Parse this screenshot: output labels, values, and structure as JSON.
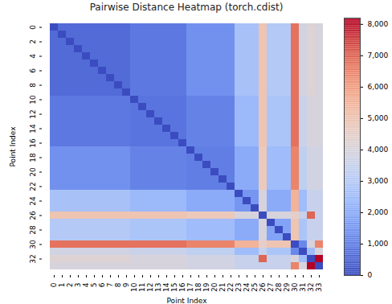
{
  "chart_data": {
    "type": "heatmap",
    "title": "Pairwise Distance Heatmap (torch.cdist)",
    "x_label": "Point Index",
    "y_label": "Point Index",
    "x": [
      0,
      1,
      2,
      3,
      4,
      5,
      6,
      7,
      8,
      9,
      10,
      11,
      12,
      13,
      14,
      15,
      16,
      17,
      18,
      19,
      20,
      21,
      22,
      23,
      24,
      25,
      26,
      27,
      28,
      29,
      30,
      31,
      32,
      33
    ],
    "y": [
      0,
      1,
      2,
      3,
      4,
      5,
      6,
      7,
      8,
      9,
      10,
      11,
      12,
      13,
      14,
      15,
      16,
      17,
      18,
      19,
      20,
      21,
      22,
      23,
      24,
      25,
      26,
      27,
      28,
      29,
      30,
      31,
      32,
      33
    ],
    "xticks": [
      0,
      1,
      2,
      3,
      4,
      5,
      6,
      7,
      8,
      9,
      10,
      11,
      12,
      13,
      14,
      15,
      16,
      17,
      18,
      19,
      20,
      21,
      22,
      23,
      24,
      25,
      26,
      27,
      28,
      29,
      30,
      31,
      32,
      33
    ],
    "yticks": [
      0,
      2,
      4,
      6,
      8,
      10,
      12,
      14,
      16,
      18,
      20,
      22,
      24,
      26,
      28,
      30,
      32
    ],
    "colorbar": {
      "lim": [
        0,
        8200
      ],
      "ticks": [
        0,
        1000,
        2000,
        3000,
        4000,
        5000,
        6000,
        7000,
        8000
      ]
    },
    "matrix": [
      [
        0,
        600,
        600,
        600,
        600,
        600,
        600,
        600,
        600,
        600,
        900,
        900,
        900,
        900,
        900,
        900,
        900,
        1400,
        1400,
        1400,
        1400,
        1400,
        1400,
        2700,
        2700,
        2700,
        5000,
        3000,
        3000,
        3000,
        6800,
        3800,
        4200,
        4000
      ],
      [
        600,
        0,
        600,
        600,
        600,
        600,
        600,
        600,
        600,
        600,
        900,
        900,
        900,
        900,
        900,
        900,
        900,
        1400,
        1400,
        1400,
        1400,
        1400,
        1400,
        2700,
        2700,
        2700,
        5000,
        3000,
        3000,
        3000,
        6800,
        3800,
        4200,
        4000
      ],
      [
        600,
        600,
        0,
        600,
        600,
        600,
        600,
        600,
        600,
        600,
        900,
        900,
        900,
        900,
        900,
        900,
        900,
        1400,
        1400,
        1400,
        1400,
        1400,
        1400,
        2700,
        2700,
        2700,
        5000,
        3000,
        3000,
        3000,
        6800,
        3800,
        4200,
        4000
      ],
      [
        600,
        600,
        600,
        0,
        600,
        600,
        600,
        600,
        600,
        600,
        900,
        900,
        900,
        900,
        900,
        900,
        900,
        1400,
        1400,
        1400,
        1400,
        1400,
        1400,
        2700,
        2700,
        2700,
        5000,
        3000,
        3000,
        3000,
        6800,
        3800,
        4200,
        4000
      ],
      [
        600,
        600,
        600,
        600,
        0,
        600,
        600,
        600,
        600,
        600,
        900,
        900,
        900,
        900,
        900,
        900,
        900,
        1400,
        1400,
        1400,
        1400,
        1400,
        1400,
        2700,
        2700,
        2700,
        5000,
        3000,
        3000,
        3000,
        6800,
        3800,
        4200,
        4000
      ],
      [
        600,
        600,
        600,
        600,
        600,
        0,
        600,
        600,
        600,
        600,
        900,
        900,
        900,
        900,
        900,
        900,
        900,
        1400,
        1400,
        1400,
        1400,
        1400,
        1400,
        2700,
        2700,
        2700,
        5000,
        3000,
        3000,
        3000,
        6800,
        3800,
        4200,
        4000
      ],
      [
        600,
        600,
        600,
        600,
        600,
        600,
        0,
        600,
        600,
        600,
        900,
        900,
        900,
        900,
        900,
        900,
        900,
        1400,
        1400,
        1400,
        1400,
        1400,
        1400,
        2700,
        2700,
        2700,
        5000,
        3000,
        3000,
        3000,
        6800,
        3800,
        4200,
        4000
      ],
      [
        600,
        600,
        600,
        600,
        600,
        600,
        600,
        0,
        600,
        600,
        900,
        900,
        900,
        900,
        900,
        900,
        900,
        1400,
        1400,
        1400,
        1400,
        1400,
        1400,
        2700,
        2700,
        2700,
        5000,
        3000,
        3000,
        3000,
        6800,
        3800,
        4200,
        4000
      ],
      [
        600,
        600,
        600,
        600,
        600,
        600,
        600,
        600,
        0,
        600,
        900,
        900,
        900,
        900,
        900,
        900,
        900,
        1400,
        1400,
        1400,
        1400,
        1400,
        1400,
        2700,
        2700,
        2700,
        5000,
        3000,
        3000,
        3000,
        6800,
        3800,
        4200,
        4000
      ],
      [
        600,
        600,
        600,
        600,
        600,
        600,
        600,
        600,
        600,
        0,
        900,
        900,
        900,
        900,
        900,
        900,
        900,
        1400,
        1400,
        1400,
        1400,
        1400,
        1400,
        2700,
        2700,
        2700,
        5000,
        3000,
        3000,
        3000,
        6800,
        3800,
        4200,
        4000
      ],
      [
        900,
        900,
        900,
        900,
        900,
        900,
        900,
        900,
        900,
        900,
        0,
        800,
        800,
        800,
        800,
        800,
        800,
        1100,
        1100,
        1100,
        1100,
        1100,
        1100,
        2400,
        2400,
        2400,
        5000,
        2800,
        2800,
        2800,
        6800,
        3600,
        4000,
        4000
      ],
      [
        900,
        900,
        900,
        900,
        900,
        900,
        900,
        900,
        900,
        900,
        800,
        0,
        800,
        800,
        800,
        800,
        800,
        1100,
        1100,
        1100,
        1100,
        1100,
        1100,
        2400,
        2400,
        2400,
        5000,
        2800,
        2800,
        2800,
        6800,
        3600,
        4000,
        4000
      ],
      [
        900,
        900,
        900,
        900,
        900,
        900,
        900,
        900,
        900,
        900,
        800,
        800,
        0,
        800,
        800,
        800,
        800,
        1100,
        1100,
        1100,
        1100,
        1100,
        1100,
        2400,
        2400,
        2400,
        5000,
        2800,
        2800,
        2800,
        6800,
        3600,
        4000,
        4000
      ],
      [
        900,
        900,
        900,
        900,
        900,
        900,
        900,
        900,
        900,
        900,
        800,
        800,
        800,
        0,
        800,
        800,
        800,
        1100,
        1100,
        1100,
        1100,
        1100,
        1100,
        2400,
        2400,
        2400,
        5000,
        2800,
        2800,
        2800,
        6800,
        3600,
        4000,
        4000
      ],
      [
        900,
        900,
        900,
        900,
        900,
        900,
        900,
        900,
        900,
        900,
        800,
        800,
        800,
        800,
        0,
        800,
        800,
        1100,
        1100,
        1100,
        1100,
        1100,
        1100,
        2400,
        2400,
        2400,
        5000,
        2800,
        2800,
        2800,
        6800,
        3600,
        4000,
        4000
      ],
      [
        900,
        900,
        900,
        900,
        900,
        900,
        900,
        900,
        900,
        900,
        800,
        800,
        800,
        800,
        800,
        0,
        800,
        1100,
        1100,
        1100,
        1100,
        1100,
        1100,
        2400,
        2400,
        2400,
        5000,
        2800,
        2800,
        2800,
        6800,
        3600,
        4000,
        4000
      ],
      [
        900,
        900,
        900,
        900,
        900,
        900,
        900,
        900,
        900,
        900,
        800,
        800,
        800,
        800,
        800,
        800,
        0,
        1100,
        1100,
        1100,
        1100,
        1100,
        1100,
        2400,
        2400,
        2400,
        5000,
        2800,
        2800,
        2800,
        6800,
        3600,
        4000,
        4000
      ],
      [
        1400,
        1400,
        1400,
        1400,
        1400,
        1400,
        1400,
        1400,
        1400,
        1400,
        1100,
        1100,
        1100,
        1100,
        1100,
        1100,
        1100,
        0,
        1000,
        1000,
        1000,
        1000,
        1000,
        2000,
        2000,
        2000,
        4800,
        2500,
        2500,
        2500,
        6500,
        3300,
        3800,
        3800
      ],
      [
        1400,
        1400,
        1400,
        1400,
        1400,
        1400,
        1400,
        1400,
        1400,
        1400,
        1100,
        1100,
        1100,
        1100,
        1100,
        1100,
        1100,
        1000,
        0,
        1000,
        1000,
        1000,
        1000,
        2000,
        2000,
        2000,
        4800,
        2500,
        2500,
        2500,
        6500,
        3300,
        3800,
        3800
      ],
      [
        1400,
        1400,
        1400,
        1400,
        1400,
        1400,
        1400,
        1400,
        1400,
        1400,
        1100,
        1100,
        1100,
        1100,
        1100,
        1100,
        1100,
        1000,
        1000,
        0,
        1000,
        1000,
        1000,
        2000,
        2000,
        2000,
        4800,
        2500,
        2500,
        2500,
        6500,
        3300,
        3800,
        3800
      ],
      [
        1400,
        1400,
        1400,
        1400,
        1400,
        1400,
        1400,
        1400,
        1400,
        1400,
        1100,
        1100,
        1100,
        1100,
        1100,
        1100,
        1100,
        1000,
        1000,
        1000,
        0,
        1000,
        1000,
        2000,
        2000,
        2000,
        4800,
        2500,
        2500,
        2500,
        6500,
        3300,
        3800,
        3800
      ],
      [
        1400,
        1400,
        1400,
        1400,
        1400,
        1400,
        1400,
        1400,
        1400,
        1400,
        1100,
        1100,
        1100,
        1100,
        1100,
        1100,
        1100,
        1000,
        1000,
        1000,
        1000,
        0,
        1000,
        2000,
        2000,
        2000,
        4800,
        2500,
        2500,
        2500,
        6500,
        3300,
        3800,
        3800
      ],
      [
        1400,
        1400,
        1400,
        1400,
        1400,
        1400,
        1400,
        1400,
        1400,
        1400,
        1100,
        1100,
        1100,
        1100,
        1100,
        1100,
        1100,
        1000,
        1000,
        1000,
        1000,
        1000,
        0,
        2000,
        2000,
        2000,
        4800,
        2500,
        2500,
        2500,
        6500,
        3300,
        3800,
        3800
      ],
      [
        2700,
        2700,
        2700,
        2700,
        2700,
        2700,
        2700,
        2700,
        2700,
        2700,
        2400,
        2400,
        2400,
        2400,
        2400,
        2400,
        2400,
        2000,
        2000,
        2000,
        2000,
        2000,
        2000,
        0,
        1500,
        1500,
        4000,
        2000,
        2000,
        2000,
        5500,
        2500,
        3500,
        3500
      ],
      [
        2700,
        2700,
        2700,
        2700,
        2700,
        2700,
        2700,
        2700,
        2700,
        2700,
        2400,
        2400,
        2400,
        2400,
        2400,
        2400,
        2400,
        2000,
        2000,
        2000,
        2000,
        2000,
        2000,
        1500,
        0,
        1500,
        4000,
        2000,
        2000,
        2000,
        5500,
        2500,
        3500,
        3500
      ],
      [
        2700,
        2700,
        2700,
        2700,
        2700,
        2700,
        2700,
        2700,
        2700,
        2700,
        2400,
        2400,
        2400,
        2400,
        2400,
        2400,
        2400,
        2000,
        2000,
        2000,
        2000,
        2000,
        2000,
        1500,
        1500,
        0,
        4000,
        2000,
        2000,
        2000,
        5500,
        2500,
        3500,
        3500
      ],
      [
        5000,
        5000,
        5000,
        5000,
        5000,
        5000,
        5000,
        5000,
        5000,
        5000,
        5000,
        5000,
        5000,
        5000,
        5000,
        5000,
        5000,
        4800,
        4800,
        4800,
        4800,
        4800,
        4800,
        4000,
        4000,
        4000,
        0,
        4000,
        4000,
        4000,
        4500,
        3500,
        7000,
        3500
      ],
      [
        3000,
        3000,
        3000,
        3000,
        3000,
        3000,
        3000,
        3000,
        3000,
        3000,
        2800,
        2800,
        2800,
        2800,
        2800,
        2800,
        2800,
        2500,
        2500,
        2500,
        2500,
        2500,
        2500,
        2000,
        2000,
        2000,
        4000,
        0,
        1800,
        1800,
        5000,
        2800,
        3500,
        3500
      ],
      [
        3000,
        3000,
        3000,
        3000,
        3000,
        3000,
        3000,
        3000,
        3000,
        3000,
        2800,
        2800,
        2800,
        2800,
        2800,
        2800,
        2800,
        2500,
        2500,
        2500,
        2500,
        2500,
        2500,
        2000,
        2000,
        2000,
        4000,
        1800,
        0,
        1800,
        5000,
        2800,
        3500,
        3500
      ],
      [
        3000,
        3000,
        3000,
        3000,
        3000,
        3000,
        3000,
        3000,
        3000,
        3000,
        2800,
        2800,
        2800,
        2800,
        2800,
        2800,
        2800,
        2500,
        2500,
        2500,
        2500,
        2500,
        2500,
        2000,
        2000,
        2000,
        4000,
        1800,
        1800,
        0,
        5000,
        2800,
        3500,
        3500
      ],
      [
        6800,
        6800,
        6800,
        6800,
        6800,
        6800,
        6800,
        6800,
        6800,
        6800,
        6800,
        6800,
        6800,
        6800,
        6800,
        6800,
        6800,
        6500,
        6500,
        6500,
        6500,
        6500,
        6500,
        5500,
        5500,
        5500,
        4500,
        5000,
        5000,
        5000,
        0,
        1200,
        4000,
        6500
      ],
      [
        3800,
        3800,
        3800,
        3800,
        3800,
        3800,
        3800,
        3800,
        3800,
        3800,
        3600,
        3600,
        3600,
        3600,
        3600,
        3600,
        3600,
        3300,
        3300,
        3300,
        3300,
        3300,
        3300,
        2500,
        2500,
        2500,
        3500,
        2800,
        2800,
        2800,
        1200,
        0,
        2500,
        4000
      ],
      [
        4200,
        4200,
        4200,
        4200,
        4200,
        4200,
        4200,
        4200,
        4200,
        4200,
        4000,
        4000,
        4000,
        4000,
        4000,
        4000,
        4000,
        3800,
        3800,
        3800,
        3800,
        3800,
        3800,
        3500,
        3500,
        3500,
        7000,
        3500,
        3500,
        3500,
        4000,
        2500,
        0,
        8200
      ],
      [
        4000,
        4000,
        4000,
        4000,
        4000,
        4000,
        4000,
        4000,
        4000,
        4000,
        4000,
        4000,
        4000,
        4000,
        4000,
        4000,
        4000,
        3800,
        3800,
        3800,
        3800,
        3800,
        3800,
        3500,
        3500,
        3500,
        3500,
        3500,
        3500,
        3500,
        6500,
        4000,
        8200,
        0
      ]
    ]
  }
}
